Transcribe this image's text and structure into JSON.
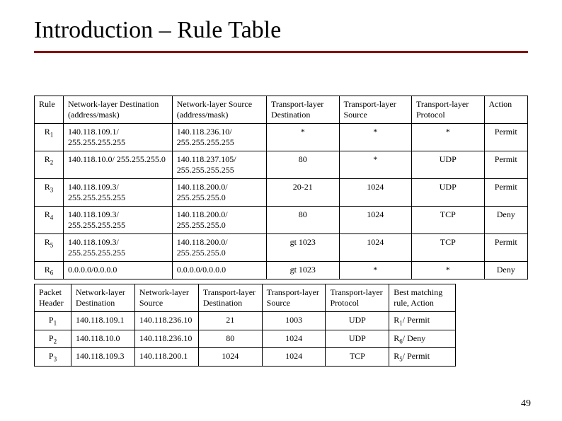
{
  "title": "Introduction – Rule Table",
  "page_number": "49",
  "rules_table": {
    "headers": [
      "Rule",
      "Network-layer Destination (address/mask)",
      "Network-layer Source (address/mask)",
      "Transport-layer Destination",
      "Transport-layer Source",
      "Transport-layer Protocol",
      "Action"
    ],
    "rows": [
      {
        "rule_sub": "1",
        "dst_net": "140.118.109.1/ 255.255.255.255",
        "src_net": "140.118.236.10/ 255.255.255.255",
        "tdst": "*",
        "tsrc": "*",
        "proto": "*",
        "action": "Permit"
      },
      {
        "rule_sub": "2",
        "dst_net": "140.118.10.0/ 255.255.255.0",
        "src_net": "140.118.237.105/ 255.255.255.255",
        "tdst": "80",
        "tsrc": "*",
        "proto": "UDP",
        "action": "Permit"
      },
      {
        "rule_sub": "3",
        "dst_net": "140.118.109.3/ 255.255.255.255",
        "src_net": "140.118.200.0/ 255.255.255.0",
        "tdst": "20-21",
        "tsrc": "1024",
        "proto": "UDP",
        "action": "Permit"
      },
      {
        "rule_sub": "4",
        "dst_net": "140.118.109.3/ 255.255.255.255",
        "src_net": "140.118.200.0/ 255.255.255.0",
        "tdst": "80",
        "tsrc": "1024",
        "proto": "TCP",
        "action": "Deny"
      },
      {
        "rule_sub": "5",
        "dst_net": "140.118.109.3/ 255.255.255.255",
        "src_net": "140.118.200.0/ 255.255.255.0",
        "tdst": "gt 1023",
        "tsrc": "1024",
        "proto": "TCP",
        "action": "Permit"
      },
      {
        "rule_sub": "6",
        "dst_net": "0.0.0.0/0.0.0.0",
        "src_net": "0.0.0.0/0.0.0.0",
        "tdst": "gt 1023",
        "tsrc": "*",
        "proto": "*",
        "action": "Deny"
      }
    ]
  },
  "packets_table": {
    "headers": [
      "Packet Header",
      "Network-layer Destination",
      "Network-layer Source",
      "Transport-layer Destination",
      "Transport-layer Source",
      "Transport-layer Protocol",
      "Best matching rule, Action"
    ],
    "rows": [
      {
        "pkt_sub": "1",
        "dst": "140.118.109.1",
        "src": "140.118.236.10",
        "tdst": "21",
        "tsrc": "1003",
        "proto": "UDP",
        "best_rule_sub": "1",
        "best_txt": "/ Permit"
      },
      {
        "pkt_sub": "2",
        "dst": "140.118.10.0",
        "src": "140.118.236.10",
        "tdst": "80",
        "tsrc": "1024",
        "proto": "UDP",
        "best_rule_sub": "6",
        "best_txt": "/ Deny"
      },
      {
        "pkt_sub": "3",
        "dst": "140.118.109.3",
        "src": "140.118.200.1",
        "tdst": "1024",
        "tsrc": "1024",
        "proto": "TCP",
        "best_rule_sub": "5",
        "best_txt": "/ Permit"
      }
    ]
  }
}
